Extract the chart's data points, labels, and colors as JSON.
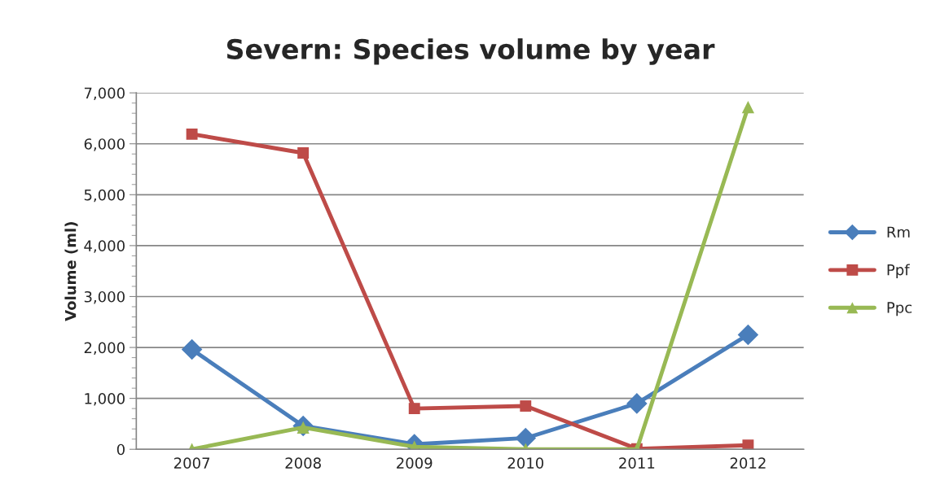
{
  "chart_data": {
    "type": "line",
    "title": "Severn: Species volume by year",
    "ylabel": "Volume (ml)",
    "categories": [
      "2007",
      "2008",
      "2009",
      "2010",
      "2011",
      "2012"
    ],
    "series": [
      {
        "name": "Rm",
        "color": "#4a7ebb",
        "marker": "diamond",
        "values": [
          1960,
          460,
          100,
          220,
          900,
          2250
        ]
      },
      {
        "name": "Ppf",
        "color": "#be4b48",
        "marker": "square",
        "values": [
          6190,
          5820,
          800,
          850,
          10,
          80
        ]
      },
      {
        "name": "Ppc",
        "color": "#98b954",
        "marker": "triangle",
        "values": [
          0,
          430,
          50,
          0,
          0,
          6720
        ]
      }
    ],
    "ylim": [
      0,
      7000
    ],
    "yticks": [
      {
        "value": 0,
        "label": "0"
      },
      {
        "value": 1000,
        "label": "1,000"
      },
      {
        "value": 2000,
        "label": "2,000"
      },
      {
        "value": 3000,
        "label": "3,000"
      },
      {
        "value": 4000,
        "label": "4,000"
      },
      {
        "value": 5000,
        "label": "5,000"
      },
      {
        "value": 6000,
        "label": "6,000"
      },
      {
        "value": 7000,
        "label": "7,000"
      }
    ],
    "grid": "y",
    "legend": "right",
    "line_style": "solid"
  }
}
